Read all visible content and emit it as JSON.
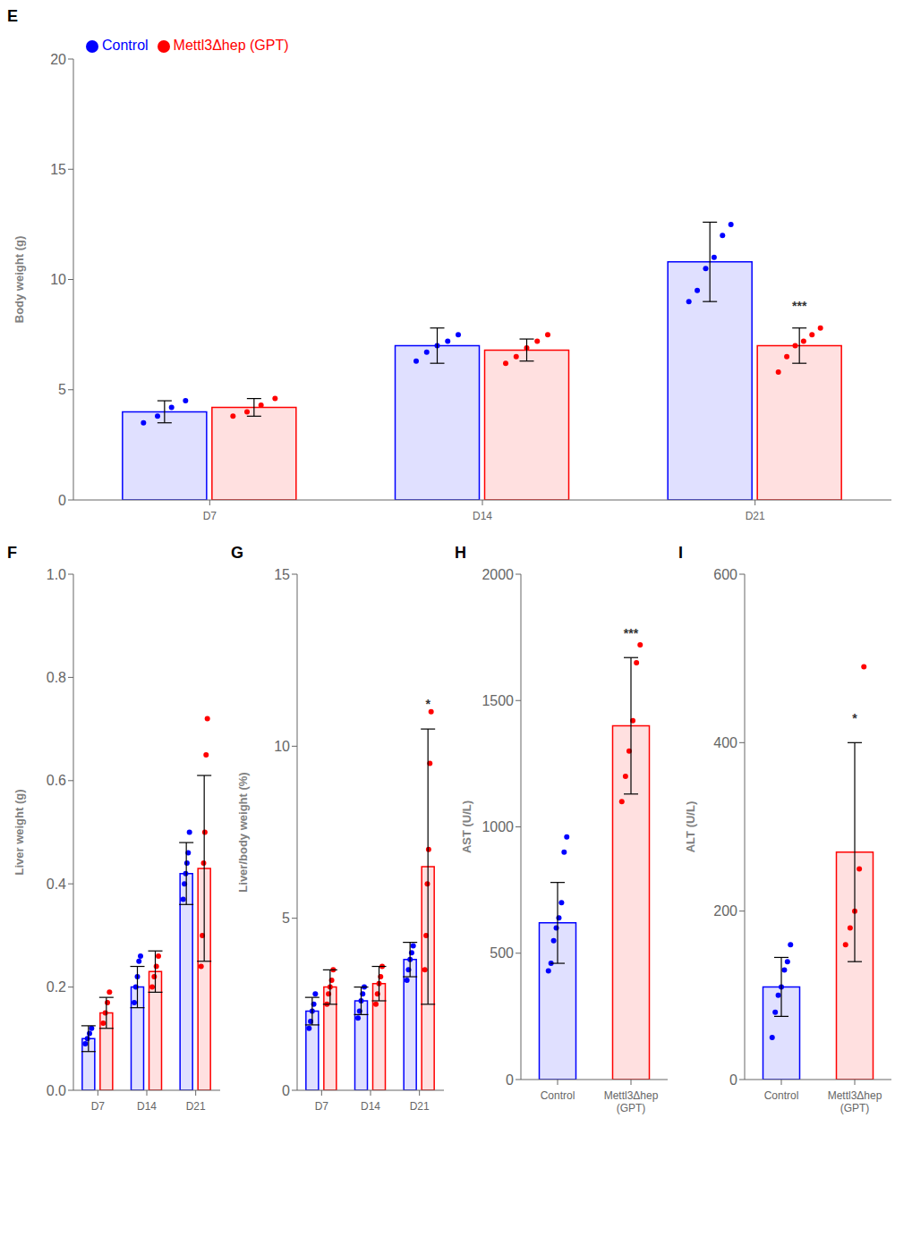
{
  "chart_data": [
    {
      "type": "bar",
      "title": "E",
      "ylabel": "Body weight (g)",
      "categories": [
        "D7",
        "D14",
        "D21"
      ],
      "ylim": [
        0,
        20
      ],
      "yticks": [
        0,
        5,
        10,
        15,
        20
      ],
      "grid": false,
      "legend": "upper left",
      "series": [
        {
          "name": "Control",
          "color": "#0000FF",
          "values": [
            4.0,
            7.0,
            10.8
          ],
          "errors": [
            0.5,
            0.8,
            1.8
          ],
          "points": [
            [
              3.5,
              3.8,
              4.2,
              4.5
            ],
            [
              6.3,
              6.7,
              7.0,
              7.2,
              7.5
            ],
            [
              9.0,
              9.5,
              10.5,
              11.0,
              12.0,
              12.5
            ]
          ]
        },
        {
          "name": "Mettl3Δhep (GPT)",
          "color": "#FF0000",
          "values": [
            4.2,
            6.8,
            7.0
          ],
          "errors": [
            0.4,
            0.5,
            0.8
          ],
          "points": [
            [
              3.8,
              4.0,
              4.3,
              4.6
            ],
            [
              6.2,
              6.5,
              6.9,
              7.2,
              7.5
            ],
            [
              5.8,
              6.5,
              7.0,
              7.2,
              7.5,
              7.8
            ]
          ]
        }
      ],
      "annotations": [
        {
          "text": "***",
          "x": "D21",
          "series": "Mettl3Δhep (GPT)"
        }
      ]
    },
    {
      "type": "bar",
      "title": "F",
      "ylabel": "Liver weight (g)",
      "categories": [
        "D7",
        "D14",
        "D21"
      ],
      "ylim": [
        0.0,
        1.0
      ],
      "yticks": [
        {
          "value": 0.0,
          "label": "0.0"
        },
        0.2,
        0.4,
        0.6,
        0.8,
        {
          "value": 1.0,
          "label": "1.0"
        }
      ],
      "grid": false,
      "series": [
        {
          "name": "Control",
          "color": "#0000FF",
          "values": [
            0.1,
            0.2,
            0.42
          ],
          "errors": [
            0.025,
            0.04,
            0.06
          ],
          "points": [
            [
              0.09,
              0.1,
              0.11,
              0.12
            ],
            [
              0.17,
              0.2,
              0.22,
              0.25,
              0.26
            ],
            [
              0.37,
              0.4,
              0.42,
              0.44,
              0.46,
              0.5
            ]
          ]
        },
        {
          "name": "Mettl3Δhep (GPT)",
          "color": "#FF0000",
          "values": [
            0.15,
            0.23,
            0.43
          ],
          "errors": [
            0.03,
            0.04,
            0.18
          ],
          "points": [
            [
              0.13,
              0.15,
              0.17,
              0.19
            ],
            [
              0.2,
              0.22,
              0.24,
              0.26
            ],
            [
              0.24,
              0.3,
              0.44,
              0.5,
              0.65,
              0.72
            ]
          ]
        }
      ]
    },
    {
      "type": "bar",
      "title": "G",
      "ylabel": "Liver/body weight (%)",
      "categories": [
        "D7",
        "D14",
        "D21"
      ],
      "ylim": [
        0,
        15
      ],
      "yticks": [
        0,
        5,
        10,
        15
      ],
      "grid": false,
      "series": [
        {
          "name": "Control",
          "color": "#0000FF",
          "values": [
            2.3,
            2.6,
            3.8
          ],
          "errors": [
            0.4,
            0.4,
            0.5
          ],
          "points": [
            [
              1.8,
              2.0,
              2.3,
              2.5,
              2.8
            ],
            [
              2.1,
              2.3,
              2.6,
              2.8,
              3.0
            ],
            [
              3.2,
              3.5,
              3.8,
              4.0,
              4.2
            ]
          ]
        },
        {
          "name": "Mettl3Δhep (GPT)",
          "color": "#FF0000",
          "values": [
            3.0,
            3.1,
            6.5
          ],
          "errors": [
            0.5,
            0.5,
            4.0
          ],
          "points": [
            [
              2.5,
              2.8,
              3.0,
              3.2,
              3.5
            ],
            [
              2.5,
              2.8,
              3.1,
              3.3,
              3.6
            ],
            [
              3.5,
              4.5,
              6.0,
              7.0,
              9.5,
              11.0
            ]
          ]
        }
      ],
      "annotations": [
        {
          "text": "*",
          "x": "D21",
          "series": "Mettl3Δhep (GPT)"
        }
      ]
    },
    {
      "type": "bar",
      "title": "H",
      "ylabel": "AST (U/L)",
      "categories": [
        "Control",
        "Mettl3Δhep\n(GPT)"
      ],
      "ylim": [
        0,
        2000
      ],
      "yticks": [
        0,
        500,
        1000,
        1500,
        2000
      ],
      "grid": false,
      "series": [
        {
          "colors": [
            "#0000FF",
            "#FF0000"
          ],
          "values": [
            620,
            1400
          ],
          "errors": [
            160,
            270
          ],
          "points": [
            [
              430,
              460,
              550,
              600,
              640,
              700,
              900,
              960
            ],
            [
              1100,
              1200,
              1300,
              1420,
              1650,
              1720
            ]
          ]
        }
      ],
      "annotations": [
        {
          "text": "***",
          "x": "Mettl3Δhep\n(GPT)"
        }
      ]
    },
    {
      "type": "bar",
      "title": "I",
      "ylabel": "ALT (U/L)",
      "categories": [
        "Control",
        "Mettl3Δhep\n(GPT)"
      ],
      "ylim": [
        0,
        600
      ],
      "yticks": [
        0,
        200,
        400,
        600
      ],
      "grid": false,
      "series": [
        {
          "colors": [
            "#0000FF",
            "#FF0000"
          ],
          "values": [
            110,
            270
          ],
          "errors": [
            35,
            130
          ],
          "points": [
            [
              50,
              80,
              100,
              110,
              130,
              140,
              160
            ],
            [
              160,
              180,
              200,
              250,
              490
            ]
          ]
        }
      ],
      "annotations": [
        {
          "text": "*",
          "x": "Mettl3Δhep\n(GPT)"
        }
      ]
    }
  ]
}
